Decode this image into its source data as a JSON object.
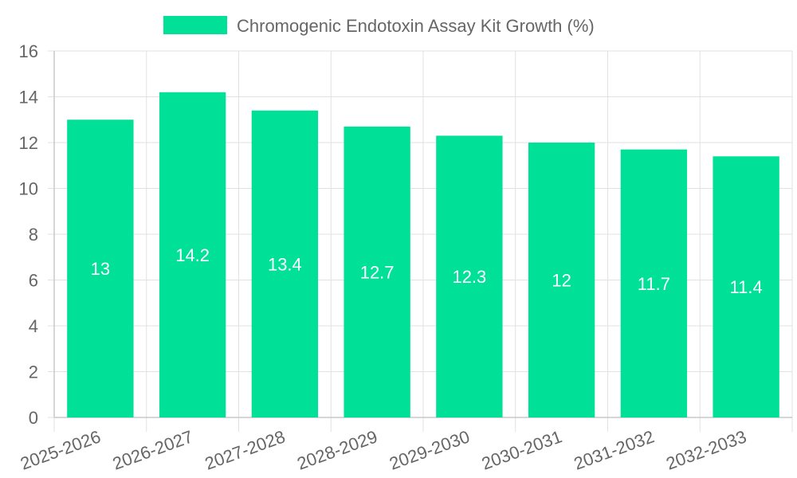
{
  "chart_data": {
    "type": "bar",
    "categories": [
      "2025-2026",
      "2026-2027",
      "2027-2028",
      "2028-2029",
      "2029-2030",
      "2030-2031",
      "2031-2032",
      "2032-2033"
    ],
    "series": [
      {
        "name": "Chromogenic Endotoxin Assay Kit Growth (%)",
        "values": [
          13,
          14.2,
          13.4,
          12.7,
          12.3,
          12,
          11.7,
          11.4
        ]
      }
    ],
    "data_labels": [
      "13",
      "14.2",
      "13.4",
      "12.7",
      "12.3",
      "12",
      "11.7",
      "11.4"
    ],
    "y_ticks": [
      "0",
      "2",
      "4",
      "6",
      "8",
      "10",
      "12",
      "14",
      "16"
    ],
    "ylim": [
      0,
      16
    ],
    "grid": true,
    "legend_position": "top-center",
    "colors": {
      "bar": "#00e096",
      "label": "#ffffff",
      "text": "#666666",
      "grid": "#e1e1e1"
    }
  }
}
